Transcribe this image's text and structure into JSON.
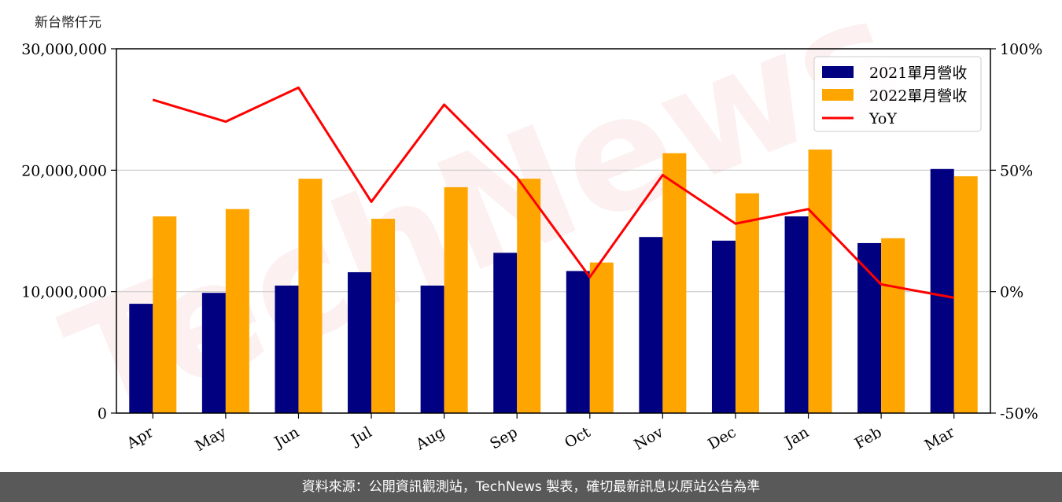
{
  "unit_label": "新台幣仟元",
  "footer_text": "資料來源：公開資訊觀測站，TechNews 製表，確切最新訊息以原站公告為準",
  "watermark_text": "TechNews",
  "chart_data": {
    "type": "bar",
    "categories": [
      "Apr",
      "May",
      "Jun",
      "Jul",
      "Aug",
      "Sep",
      "Oct",
      "Nov",
      "Dec",
      "Jan",
      "Feb",
      "Mar"
    ],
    "series": [
      {
        "name": "2021單月營收",
        "kind": "bar",
        "axis": "left",
        "color": "#000080",
        "values": [
          9000000,
          9900000,
          10500000,
          11600000,
          10500000,
          13200000,
          11700000,
          14500000,
          14200000,
          16200000,
          14000000,
          20100000
        ]
      },
      {
        "name": "2022單月營收",
        "kind": "bar",
        "axis": "left",
        "color": "#FFA500",
        "values": [
          16200000,
          16800000,
          19300000,
          16000000,
          18600000,
          19300000,
          12400000,
          21400000,
          18100000,
          21700000,
          14400000,
          19500000
        ]
      },
      {
        "name": "YoY",
        "kind": "line",
        "axis": "right",
        "color": "#FF0000",
        "values": [
          79,
          70,
          84,
          37,
          77,
          47,
          6,
          48,
          28,
          34,
          3,
          -2.5
        ]
      }
    ],
    "left_axis": {
      "ylim": [
        0,
        30000000
      ],
      "ticks": [
        0,
        10000000,
        20000000,
        30000000
      ],
      "tick_labels": [
        "0",
        "10,000,000",
        "20,000,000",
        "30,000,000"
      ]
    },
    "right_axis": {
      "ylim": [
        -50,
        100
      ],
      "ticks": [
        -50,
        0,
        50,
        100
      ],
      "tick_labels": [
        "-50%",
        "0%",
        "50%",
        "100%"
      ]
    },
    "grid": "horizontal",
    "legend_position": "top-right"
  }
}
